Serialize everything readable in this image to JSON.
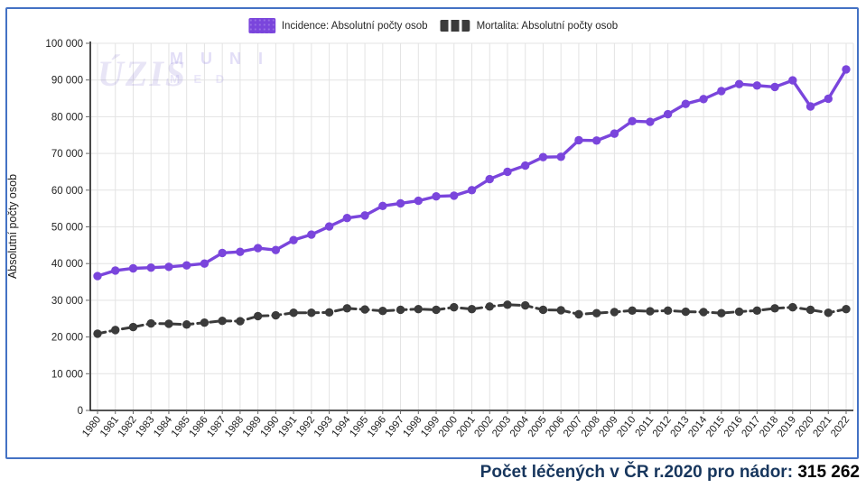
{
  "frame": {
    "border_color": "#4472C4"
  },
  "legend": {
    "items": [
      {
        "label": "Incidence: Absolutní počty osob",
        "color": "#7A45DC",
        "style": "solid"
      },
      {
        "label": "Mortalita: Absolutní počty osob",
        "color": "#3B3B3B",
        "style": "dashed"
      }
    ]
  },
  "watermarks": {
    "uzis": "ÚZIS",
    "muni_line1": "M U N I",
    "muni_line2": "M E D"
  },
  "colors": {
    "incidence": "#7A45DC",
    "mortality": "#3B3B3B",
    "grid": "#E3E3E3",
    "axis": "#1a1a1a",
    "tick_text": "#1f1f1f",
    "frame_border": "#4472C4",
    "caption_navy": "#17365D"
  },
  "chart_data": {
    "type": "line",
    "title": "",
    "xlabel": "",
    "ylabel": "Absolutní počty osob",
    "ylim": [
      0,
      100000
    ],
    "ytick_step": 10000,
    "grid": true,
    "legend_position": "top-center",
    "x": [
      1980,
      1981,
      1982,
      1983,
      1984,
      1985,
      1986,
      1987,
      1988,
      1989,
      1990,
      1991,
      1992,
      1993,
      1994,
      1995,
      1996,
      1997,
      1998,
      1999,
      2000,
      2001,
      2002,
      2003,
      2004,
      2005,
      2006,
      2007,
      2008,
      2009,
      2010,
      2011,
      2012,
      2013,
      2014,
      2015,
      2016,
      2017,
      2018,
      2019,
      2020,
      2021,
      2022
    ],
    "series": [
      {
        "name": "Incidence: Absolutní počty osob",
        "color": "#7A45DC",
        "style": "solid",
        "values": [
          36600,
          38100,
          38700,
          38900,
          39100,
          39500,
          40000,
          42900,
          43200,
          44200,
          43700,
          46400,
          47900,
          50100,
          52400,
          53100,
          55700,
          56400,
          57100,
          58300,
          58500,
          60000,
          63000,
          65000,
          66700,
          69000,
          69100,
          73600,
          73500,
          75400,
          78800,
          78600,
          80700,
          83500,
          84800,
          87000,
          88900,
          88500,
          88100,
          89900,
          82800,
          84900,
          92900
        ]
      },
      {
        "name": "Mortalita: Absolutní počty osob",
        "color": "#3B3B3B",
        "style": "dashed",
        "values": [
          20900,
          21900,
          22700,
          23700,
          23600,
          23400,
          23900,
          24400,
          24300,
          25700,
          25900,
          26600,
          26600,
          26700,
          27800,
          27500,
          27100,
          27400,
          27600,
          27400,
          28100,
          27600,
          28300,
          28800,
          28600,
          27400,
          27300,
          26200,
          26500,
          26800,
          27200,
          27000,
          27200,
          26900,
          26800,
          26500,
          26900,
          27200,
          27800,
          28100,
          27400,
          26600,
          27600
        ]
      }
    ]
  },
  "caption": {
    "label": "Počet léčených v ČR r.2020 pro nádor:",
    "value": "315 262"
  }
}
